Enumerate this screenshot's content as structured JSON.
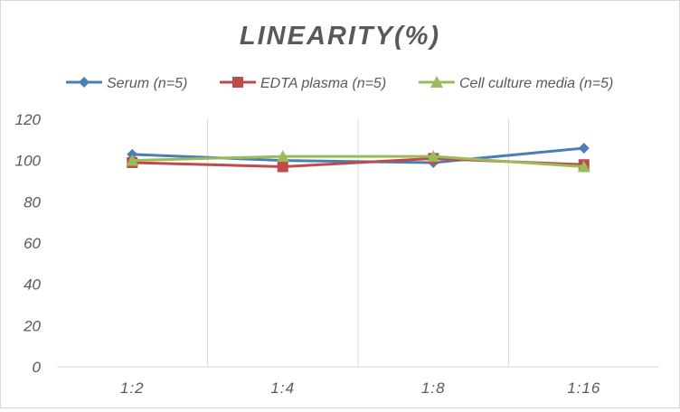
{
  "chart_data": {
    "type": "line",
    "title": "LINEARITY(%)",
    "categories": [
      "1:2",
      "1:4",
      "1:8",
      "1:16"
    ],
    "ylim": [
      0,
      120
    ],
    "yticks": [
      0,
      20,
      40,
      60,
      80,
      100,
      120
    ],
    "grid": "vertical",
    "legend": "top",
    "series": [
      {
        "name": "Serum (n=5)",
        "values": [
          103,
          100,
          99,
          106
        ],
        "color": "#4a7ebb",
        "marker": "diamond"
      },
      {
        "name": "EDTA plasma (n=5)",
        "values": [
          99,
          97,
          101,
          98
        ],
        "color": "#be4b48",
        "marker": "square"
      },
      {
        "name": "Cell culture media (n=5)",
        "values": [
          100,
          102,
          102,
          97
        ],
        "color": "#9bbb59",
        "marker": "triangle"
      }
    ]
  }
}
